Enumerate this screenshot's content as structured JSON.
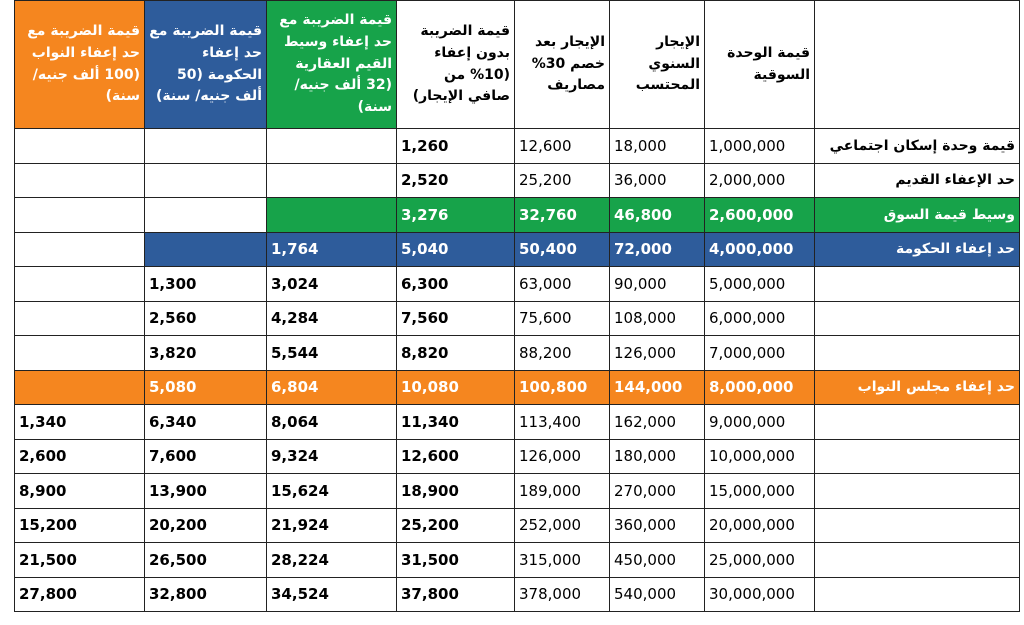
{
  "table": {
    "header": [
      {
        "text": null
      },
      {
        "text": "قيمة الوحدة السوقية"
      },
      {
        "text": "الإيجار السنوي المحتسب"
      },
      {
        "text": "الإيجار بعد خصم 30% مصاريف"
      },
      {
        "text": "قيمة الضريبة بدون إعفاء (10% من صافي الإيجار)"
      },
      {
        "text": "قيمة الضريبة مع حد إعفاء وسيط القيم العقارية (32 ألف جنيه/ سنة)",
        "color": "#17a34a"
      },
      {
        "text": "قيمة الضريبة مع حد إعفاء الحكومة (50 ألف جنيه/ سنة)",
        "color": "#2e5c9b"
      },
      {
        "text": "قيمة الضريبة مع حد إعفاء النواب (100 ألف جنيه/ سنة)",
        "color": "#f5861f"
      }
    ],
    "rows": [
      {
        "label": "قيمة وحدة إسكان اجتماعي",
        "cells": [
          "1,000,000",
          "18,000",
          "12,600",
          "1,260",
          null,
          null,
          null
        ]
      },
      {
        "label": "حد الإعفاء القديم",
        "cells": [
          "2,000,000",
          "36,000",
          "25,200",
          "2,520",
          null,
          null,
          null
        ]
      },
      {
        "label": "وسيط قيمة السوق",
        "color": "#17a34a",
        "cells": [
          "2,600,000",
          "46,800",
          "32,760",
          "3,276",
          null,
          null,
          null
        ]
      },
      {
        "label": "حد إعفاء الحكومة",
        "color": "#2e5c9b",
        "cells": [
          "4,000,000",
          "72,000",
          "50,400",
          "5,040",
          "1,764",
          null,
          null
        ]
      },
      {
        "label": null,
        "cells": [
          "5,000,000",
          "90,000",
          "63,000",
          "6,300",
          "3,024",
          "1,300",
          null
        ]
      },
      {
        "label": null,
        "cells": [
          "6,000,000",
          "108,000",
          "75,600",
          "7,560",
          "4,284",
          "2,560",
          null
        ]
      },
      {
        "label": null,
        "cells": [
          "7,000,000",
          "126,000",
          "88,200",
          "8,820",
          "5,544",
          "3,820",
          null
        ]
      },
      {
        "label": "حد إعفاء مجلس النواب",
        "color": "#f5861f",
        "cells": [
          "8,000,000",
          "144,000",
          "100,800",
          "10,080",
          "6,804",
          "5,080",
          null
        ]
      },
      {
        "label": null,
        "cells": [
          "9,000,000",
          "162,000",
          "113,400",
          "11,340",
          "8,064",
          "6,340",
          "1,340"
        ]
      },
      {
        "label": null,
        "cells": [
          "10,000,000",
          "180,000",
          "126,000",
          "12,600",
          "9,324",
          "7,600",
          "2,600"
        ]
      },
      {
        "label": null,
        "cells": [
          "15,000,000",
          "270,000",
          "189,000",
          "18,900",
          "15,624",
          "13,900",
          "8,900"
        ]
      },
      {
        "label": null,
        "cells": [
          "20,000,000",
          "360,000",
          "252,000",
          "25,200",
          "21,924",
          "20,200",
          "15,200"
        ]
      },
      {
        "label": null,
        "cells": [
          "25,000,000",
          "450,000",
          "315,000",
          "31,500",
          "28,224",
          "26,500",
          "21,500"
        ]
      },
      {
        "label": null,
        "cells": [
          "30,000,000",
          "540,000",
          "378,000",
          "37,800",
          "34,524",
          "32,800",
          "27,800"
        ]
      }
    ]
  }
}
